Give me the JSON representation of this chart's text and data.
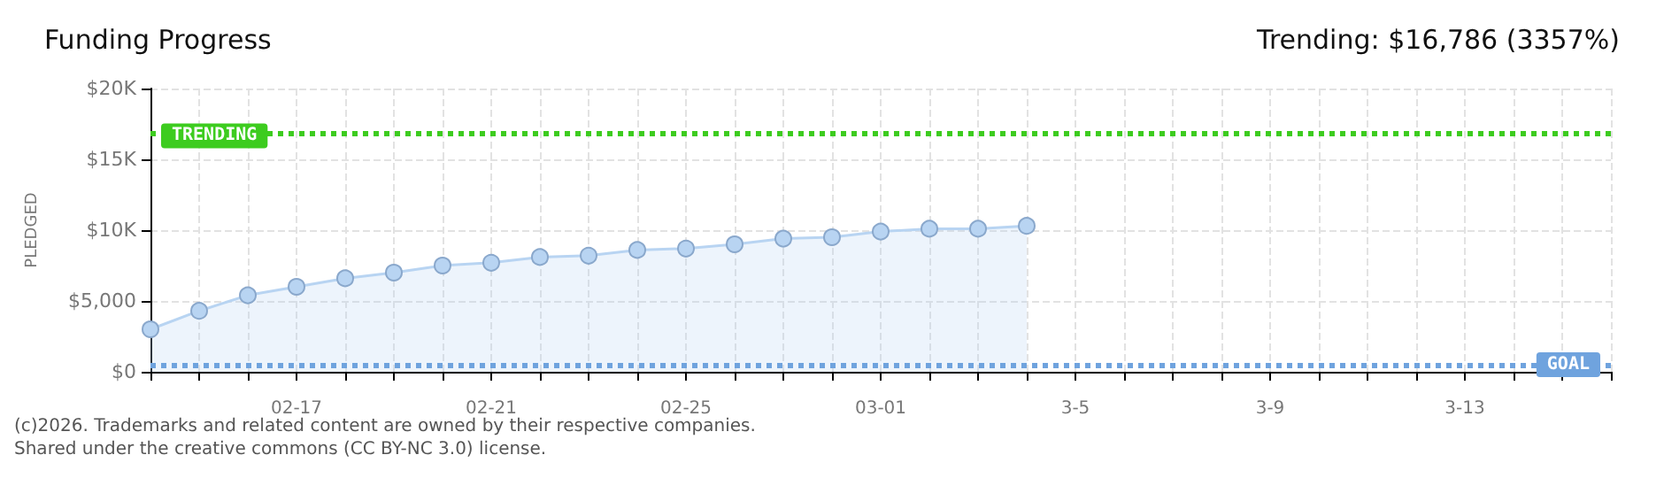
{
  "chart_data": {
    "type": "area",
    "title": "Funding Progress",
    "subtitle": "Trending: $16,786 (3357%)",
    "ylabel": "PLEDGED",
    "categories": [
      null,
      null,
      null,
      "02-17",
      null,
      null,
      null,
      "02-21",
      null,
      null,
      null,
      "02-25",
      null,
      null,
      null,
      "03-01",
      null,
      null,
      null,
      "3-5",
      null,
      null,
      null,
      "3-9",
      null,
      null,
      null,
      "3-13",
      null,
      null,
      null
    ],
    "series": [
      {
        "color": "#b8d4f2",
        "values": [
          3000,
          4300,
          5400,
          6000,
          6600,
          7000,
          7500,
          7700,
          8100,
          8200,
          8600,
          8700,
          9000,
          9400,
          9500,
          9900,
          10100,
          10100,
          10300,
          null,
          null,
          null,
          null,
          null,
          null,
          null,
          null,
          null,
          null,
          null,
          null
        ]
      }
    ],
    "ylim": [
      0,
      20000
    ],
    "yticks": [
      {
        "value": 0,
        "label": "$0"
      },
      {
        "value": 5000,
        "label": "$5,000"
      },
      {
        "value": 10000,
        "label": "$10K"
      },
      {
        "value": 15000,
        "label": "$15K"
      },
      {
        "value": 20000,
        "label": "$20K"
      }
    ],
    "ref_lines": [
      {
        "axis": "y",
        "value": 16786,
        "label": "TRENDING",
        "color": "#3dcc1f",
        "line_style": "dotted"
      },
      {
        "axis": "y",
        "value": 500,
        "label": "GOAL",
        "color": "#6fa3de",
        "line_style": "dotted"
      }
    ],
    "grid": true,
    "marker": "circle",
    "annotations": [
      "(c)2026. Trademarks and related content are owned by their respective companies.",
      "Shared under the creative commons (CC BY-NC 3.0) license."
    ]
  }
}
